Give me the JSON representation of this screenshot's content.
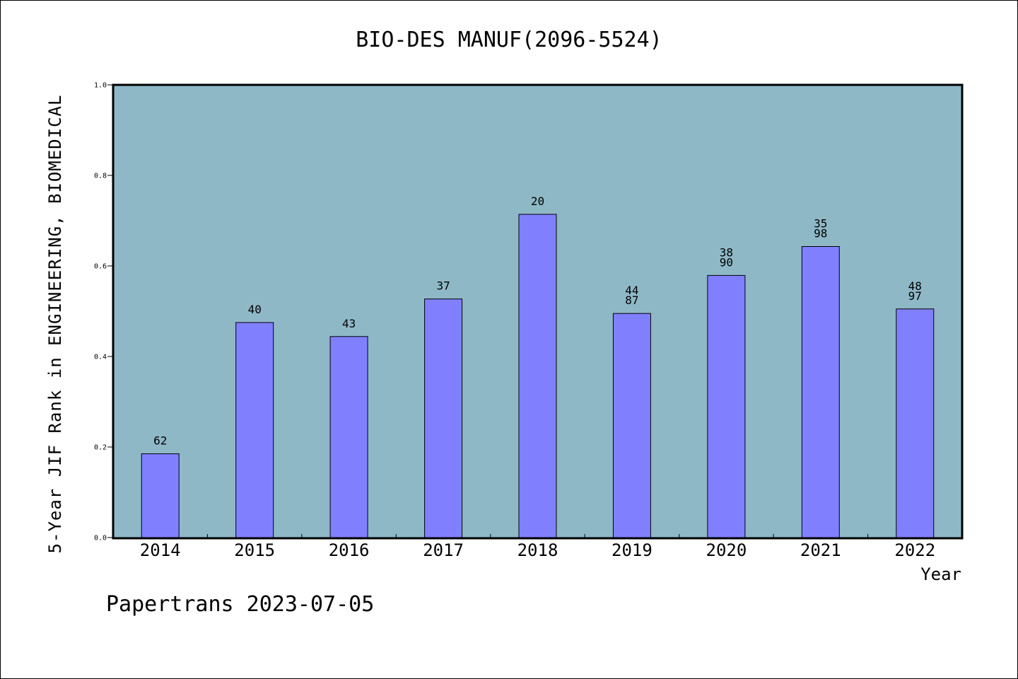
{
  "chart_data": {
    "type": "bar",
    "title": "BIO-DES MANUF(2096-5524)",
    "ylabel": "5-Year JIF Rank in ENGINEERING, BIOMEDICAL",
    "xlabel": "Year",
    "ylim": [
      0.0,
      1.0
    ],
    "yticks": [
      "0.0",
      "0.2",
      "0.4",
      "0.6",
      "0.8",
      "1.0"
    ],
    "categories": [
      "2014",
      "2015",
      "2016",
      "2017",
      "2018",
      "2019",
      "2020",
      "2021",
      "2022"
    ],
    "values": [
      0.185,
      0.475,
      0.444,
      0.527,
      0.714,
      0.495,
      0.579,
      0.643,
      0.505
    ],
    "labels": [
      [
        "62"
      ],
      [
        "40"
      ],
      [
        "43"
      ],
      [
        "37"
      ],
      [
        "20"
      ],
      [
        "44",
        "87"
      ],
      [
        "38",
        "90"
      ],
      [
        "35",
        "98"
      ],
      [
        "48",
        "97"
      ]
    ],
    "grid": false,
    "colors": {
      "plot_background": "#8fb8c7",
      "bar": "#8080ff",
      "border": "#000000"
    }
  },
  "footer": "Papertrans 2023-07-05"
}
